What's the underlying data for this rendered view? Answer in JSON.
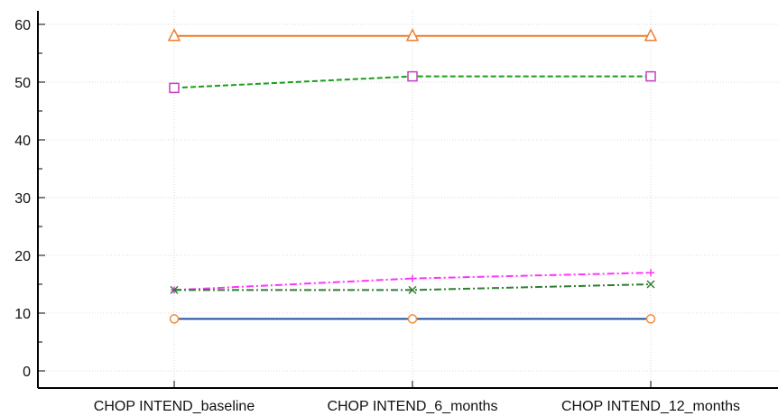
{
  "chart_data": {
    "type": "line",
    "categories": [
      "CHOP INTEND_baseline",
      "CHOP INTEND_6_months",
      "CHOP INTEND_12_months"
    ],
    "ylim": [
      0,
      60
    ],
    "yticks": [
      0,
      10,
      20,
      30,
      40,
      50,
      60
    ],
    "grid": true,
    "legend": "none",
    "series": [
      {
        "values": [
          58,
          58,
          58
        ],
        "color": "#ED7D31",
        "marker": "triangle",
        "dash": "solid"
      },
      {
        "values": [
          49,
          51,
          51
        ],
        "color": "#1A9E1A",
        "marker": "square",
        "marker_color": "#C042C0",
        "dash": "dashed"
      },
      {
        "values": [
          14,
          16,
          17
        ],
        "color": "#FF33FF",
        "marker": "plus",
        "dash": "dashdot"
      },
      {
        "values": [
          14,
          14,
          15
        ],
        "color": "#2E7D32",
        "marker": "x",
        "dash": "dashdot"
      },
      {
        "values": [
          9,
          9,
          9
        ],
        "color": "#1F4E9E",
        "marker": "circle",
        "marker_color": "#F28C38",
        "dash": "solid"
      }
    ]
  }
}
